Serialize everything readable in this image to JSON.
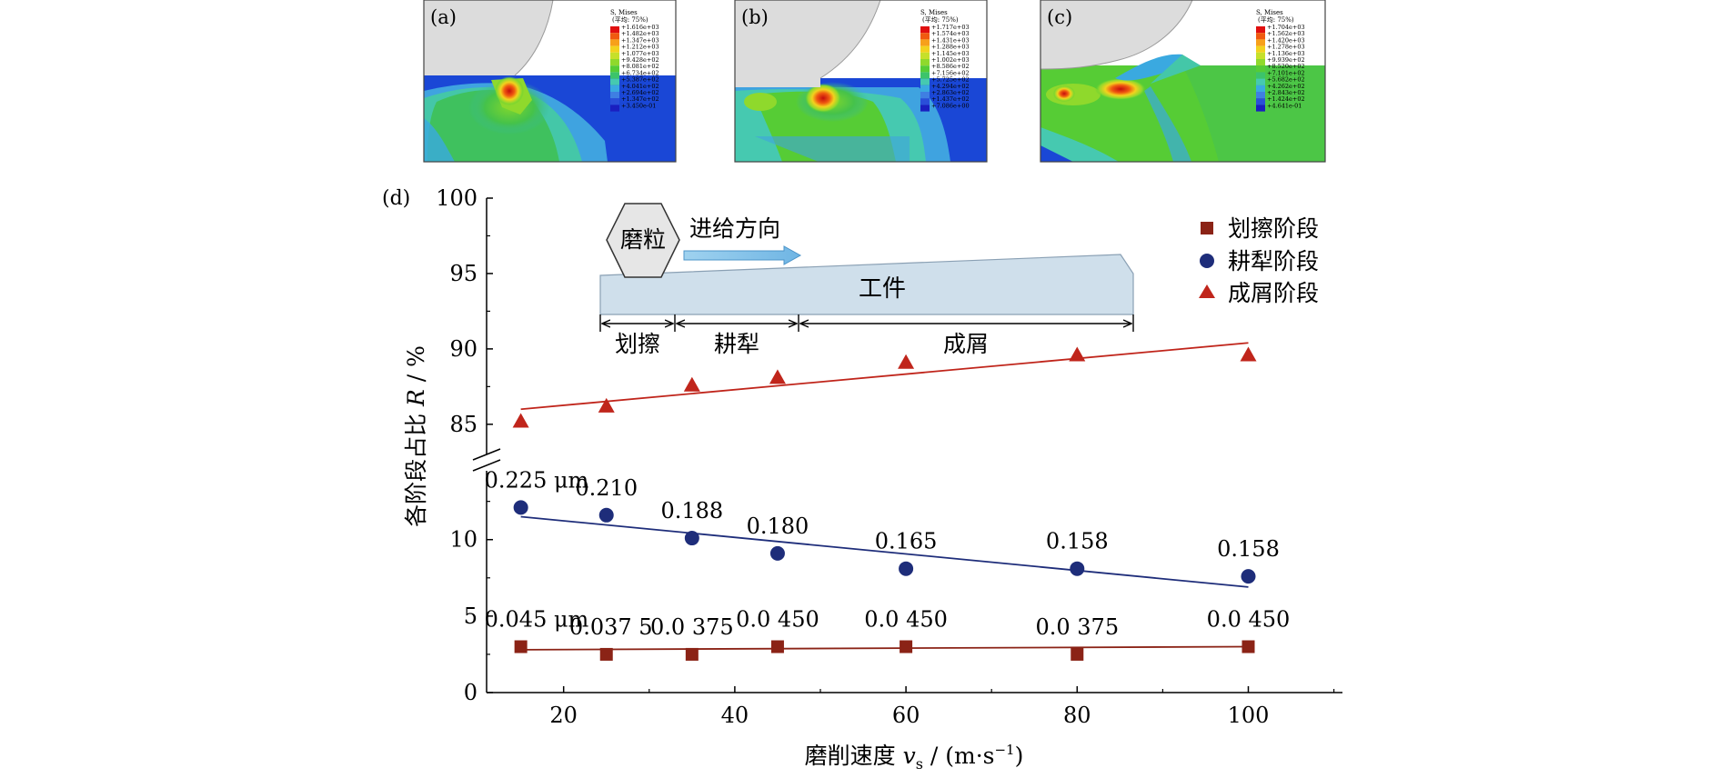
{
  "panels": [
    {
      "label": "(a)",
      "legend_title": "S, Mises",
      "legend_sub": "(平均: 75%)",
      "legend_values": [
        "+1.616e+03",
        "+1.482e+03",
        "+1.347e+03",
        "+1.212e+03",
        "+1.077e+03",
        "+9.428e+02",
        "+8.081e+02",
        "+6.734e+02",
        "+5.387e+02",
        "+4.041e+02",
        "+2.694e+02",
        "+1.347e+02",
        "+3.450e-01"
      ],
      "legend_colors": [
        "#e01010",
        "#f05a10",
        "#f7a01a",
        "#f2d21e",
        "#c6e02a",
        "#8fd92c",
        "#56cc35",
        "#3cc46a",
        "#46c9b0",
        "#3aa9e0",
        "#3f7fe2",
        "#2a4fd9",
        "#1a1fc0"
      ]
    },
    {
      "label": "(b)",
      "legend_title": "S, Mises",
      "legend_sub": "(平均: 75%)",
      "legend_values": [
        "+1.717e+03",
        "+1.574e+03",
        "+1.431e+03",
        "+1.288e+03",
        "+1.145e+03",
        "+1.002e+03",
        "+8.586e+02",
        "+7.156e+02",
        "+5.725e+02",
        "+4.294e+02",
        "+2.863e+02",
        "+1.437e+02",
        "+7.086e+00"
      ],
      "legend_colors": [
        "#e01010",
        "#f05a10",
        "#f7a01a",
        "#f2d21e",
        "#c6e02a",
        "#8fd92c",
        "#56cc35",
        "#3cc46a",
        "#46c9b0",
        "#3aa9e0",
        "#3f7fe2",
        "#2a4fd9",
        "#1a1fc0"
      ]
    },
    {
      "label": "(c)",
      "legend_title": "S, Mises",
      "legend_sub": "(平均: 75%)",
      "legend_values": [
        "+1.704e+03",
        "+1.562e+03",
        "+1.420e+03",
        "+1.278e+03",
        "+1.136e+03",
        "+9.939e+02",
        "+8.520e+02",
        "+7.101e+02",
        "+5.682e+02",
        "+4.262e+02",
        "+2.843e+02",
        "+1.424e+02",
        "+4.641e-01"
      ],
      "legend_colors": [
        "#e01010",
        "#f05a10",
        "#f7a01a",
        "#f2d21e",
        "#c6e02a",
        "#8fd92c",
        "#56cc35",
        "#3cc46a",
        "#46c9b0",
        "#3aa9e0",
        "#3f7fe2",
        "#2a4fd9",
        "#1a1fc0"
      ]
    }
  ],
  "chart_data": {
    "type": "scatter",
    "panel_label": "(d)",
    "xlabel_prefix": "磨削速度 ",
    "xlabel_var": "v",
    "xlabel_sub": "s",
    "xlabel_unit": " / (m·s",
    "xlabel_sup": "−1",
    "xlabel_end": ")",
    "ylabel_prefix": "各阶段占比 ",
    "ylabel_var": "R",
    "ylabel_suffix": " / %",
    "x_ticks": [
      20,
      40,
      60,
      80,
      100
    ],
    "xlim": [
      11,
      111
    ],
    "y_ticks_lower": [
      0,
      5,
      10
    ],
    "y_ticks_upper": [
      85,
      90,
      95,
      100
    ],
    "ylim_lower": [
      0,
      14.5
    ],
    "ylim_upper": [
      83,
      100
    ],
    "axis_break": "between 14.5 and 83",
    "grid": false,
    "legend_position": "top-right",
    "series": [
      {
        "name": "划擦阶段",
        "marker": "square",
        "color": "#8b2316",
        "x": [
          15,
          25,
          35,
          45,
          60,
          80,
          100
        ],
        "y": [
          3.0,
          2.5,
          2.5,
          3.0,
          3.0,
          2.5,
          3.0
        ],
        "fit": [
          [
            15,
            2.8
          ],
          [
            100,
            3.0
          ]
        ],
        "point_labels": [
          "0.045 μm",
          "0.037 5",
          "0.0 375",
          "0.0 450",
          "0.0 450",
          "0.0 375",
          "0.0 450"
        ]
      },
      {
        "name": "耕犁阶段",
        "marker": "circle",
        "color": "#1e2d7a",
        "x": [
          15,
          25,
          35,
          45,
          60,
          80,
          100
        ],
        "y": [
          12.1,
          11.6,
          10.1,
          9.1,
          8.1,
          8.1,
          7.6
        ],
        "fit": [
          [
            15,
            11.5
          ],
          [
            100,
            6.9
          ]
        ],
        "point_labels": [
          "0.225 μm",
          "0.210",
          "0.188",
          "0.180",
          "0.165",
          "0.158",
          "0.158"
        ]
      },
      {
        "name": "成屑阶段",
        "marker": "triangle",
        "color": "#c0251b",
        "x": [
          15,
          25,
          35,
          45,
          60,
          80,
          100
        ],
        "y": [
          85.2,
          86.2,
          87.6,
          88.1,
          89.1,
          89.6,
          89.6
        ],
        "fit": [
          [
            15,
            86.0
          ],
          [
            100,
            90.4
          ]
        ],
        "point_labels": []
      }
    ],
    "inset": {
      "grain_label": "磨粒",
      "feed_label": "进给方向",
      "workpiece_label": "工件",
      "stage_labels": [
        "划擦",
        "耕犁",
        "成屑"
      ]
    }
  }
}
